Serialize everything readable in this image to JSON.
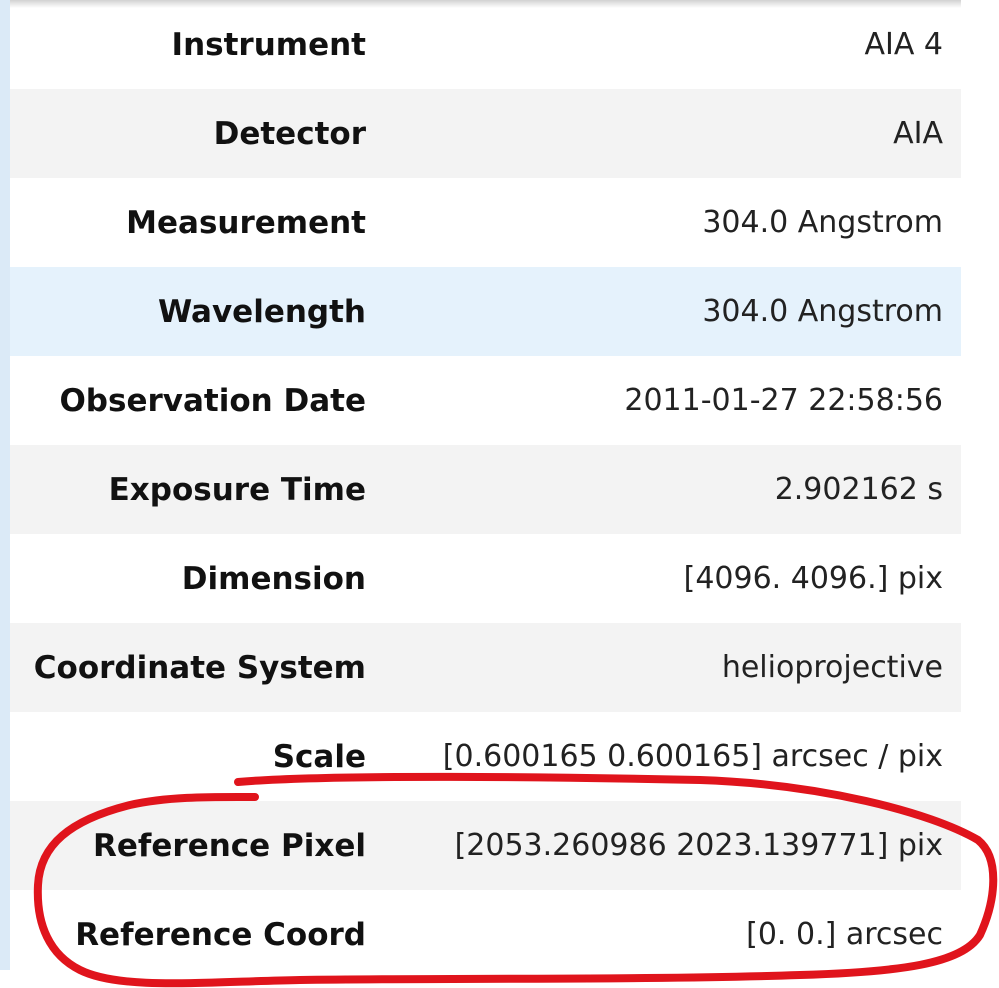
{
  "metadata_table": {
    "rows": [
      {
        "key": "Instrument",
        "value": "AIA 4"
      },
      {
        "key": "Detector",
        "value": "AIA"
      },
      {
        "key": "Measurement",
        "value": "304.0 Angstrom"
      },
      {
        "key": "Wavelength",
        "value": "304.0 Angstrom"
      },
      {
        "key": "Observation Date",
        "value": "2011-01-27 22:58:56"
      },
      {
        "key": "Exposure Time",
        "value": "2.902162 s"
      },
      {
        "key": "Dimension",
        "value": "[4096. 4096.] pix"
      },
      {
        "key": "Coordinate System",
        "value": "helioprojective"
      },
      {
        "key": "Scale",
        "value": "[0.600165 0.600165] arcsec / pix"
      },
      {
        "key": "Reference Pixel",
        "value": "[2053.260986 2023.139771] pix"
      },
      {
        "key": "Reference Coord",
        "value": "[0. 0.] arcsec"
      }
    ]
  },
  "colors": {
    "row_alt": "#f3f3f3",
    "row_hover": "#e5f2fc",
    "annotation_stroke": "#e0141c"
  }
}
